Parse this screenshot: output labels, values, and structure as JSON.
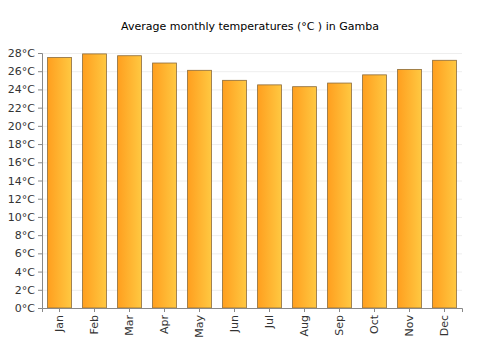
{
  "chart_data": {
    "type": "bar",
    "title": "Average monthly temperatures (°C ) in Gamba",
    "categories": [
      "Jan",
      "Feb",
      "Mar",
      "Apr",
      "May",
      "Jun",
      "Jul",
      "Aug",
      "Sep",
      "Oct",
      "Nov",
      "Dec"
    ],
    "values": [
      27.5,
      27.9,
      27.7,
      26.9,
      26.1,
      25.0,
      24.5,
      24.3,
      24.7,
      25.6,
      26.2,
      27.2
    ],
    "color": "#ff9f1f",
    "ylim": [
      0,
      28
    ],
    "yticks": [
      {
        "value": 0,
        "label": "0°C"
      },
      {
        "value": 2,
        "label": "2°C"
      },
      {
        "value": 4,
        "label": "4°C"
      },
      {
        "value": 6,
        "label": "6°C"
      },
      {
        "value": 8,
        "label": "8°C"
      },
      {
        "value": 10,
        "label": "10°C"
      },
      {
        "value": 12,
        "label": "12°C"
      },
      {
        "value": 14,
        "label": "14°C"
      },
      {
        "value": 16,
        "label": "16°C"
      },
      {
        "value": 18,
        "label": "18°C"
      },
      {
        "value": 20,
        "label": "20°C"
      },
      {
        "value": 22,
        "label": "22°C"
      },
      {
        "value": 24,
        "label": "24°C"
      },
      {
        "value": 26,
        "label": "26°C"
      },
      {
        "value": 28,
        "label": "28°C"
      }
    ],
    "grid": true
  }
}
